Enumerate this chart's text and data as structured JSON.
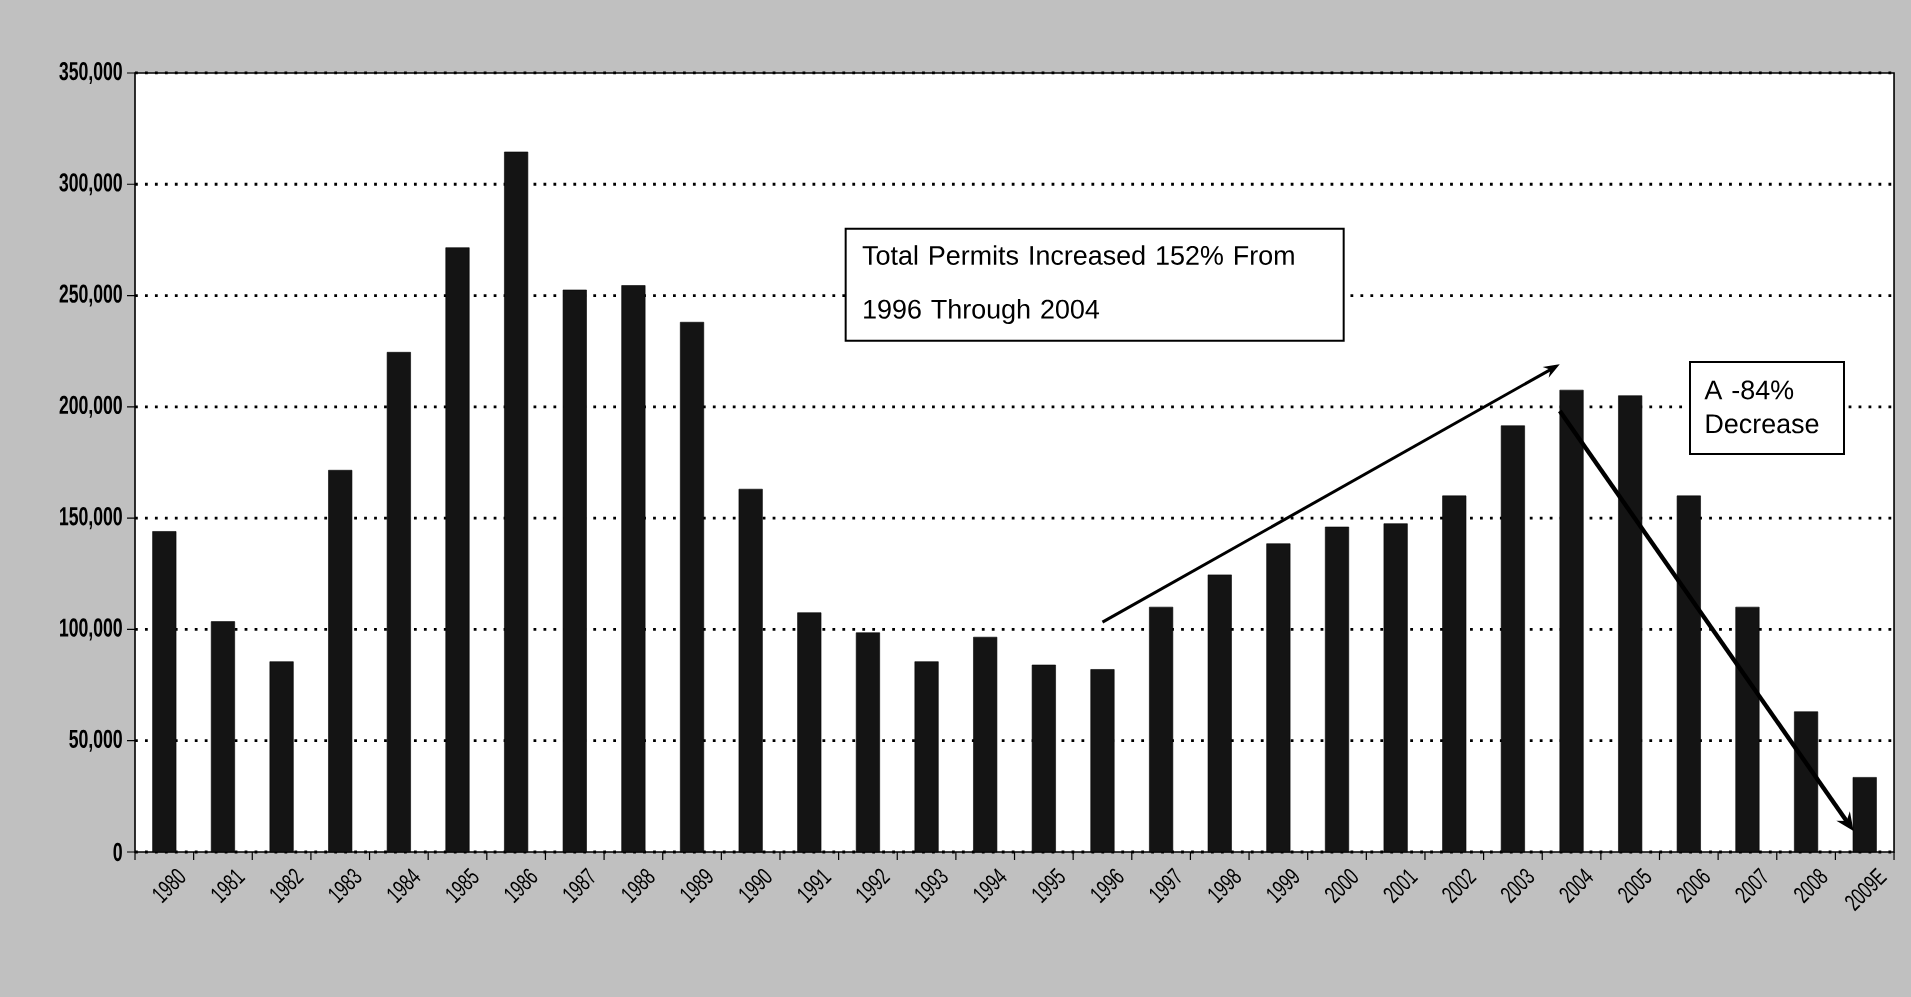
{
  "chart_data": {
    "type": "bar",
    "categories": [
      "1980",
      "1981",
      "1982",
      "1983",
      "1984",
      "1985",
      "1986",
      "1987",
      "1988",
      "1989",
      "1990",
      "1991",
      "1992",
      "1993",
      "1994",
      "1995",
      "1996",
      "1997",
      "1998",
      "1999",
      "2000",
      "2001",
      "2002",
      "2003",
      "2004",
      "2005",
      "2006",
      "2007",
      "2008",
      "2009E"
    ],
    "values": [
      144000,
      103500,
      85500,
      171500,
      224500,
      271500,
      314500,
      252500,
      254500,
      238000,
      163000,
      107500,
      98500,
      85500,
      96500,
      84000,
      82000,
      110000,
      124500,
      138500,
      146000,
      147500,
      160000,
      191500,
      207500,
      205000,
      160000,
      110000,
      63000,
      33500
    ],
    "color": "#141414",
    "ylim": [
      0,
      350000
    ],
    "yticks": [
      {
        "value": 0,
        "label": "0"
      },
      {
        "value": 50000,
        "label": "50,000"
      },
      {
        "value": 100000,
        "label": "100,000"
      },
      {
        "value": 150000,
        "label": "150,000"
      },
      {
        "value": 200000,
        "label": "200,000"
      },
      {
        "value": 250000,
        "label": "250,000"
      },
      {
        "value": 300000,
        "label": "300,000"
      },
      {
        "value": 350000,
        "label": "350,000"
      }
    ],
    "grid": "y",
    "annotations": [
      "Total Permits Increased 152% From 1996 Through 2004",
      "A -84% Decrease"
    ]
  }
}
